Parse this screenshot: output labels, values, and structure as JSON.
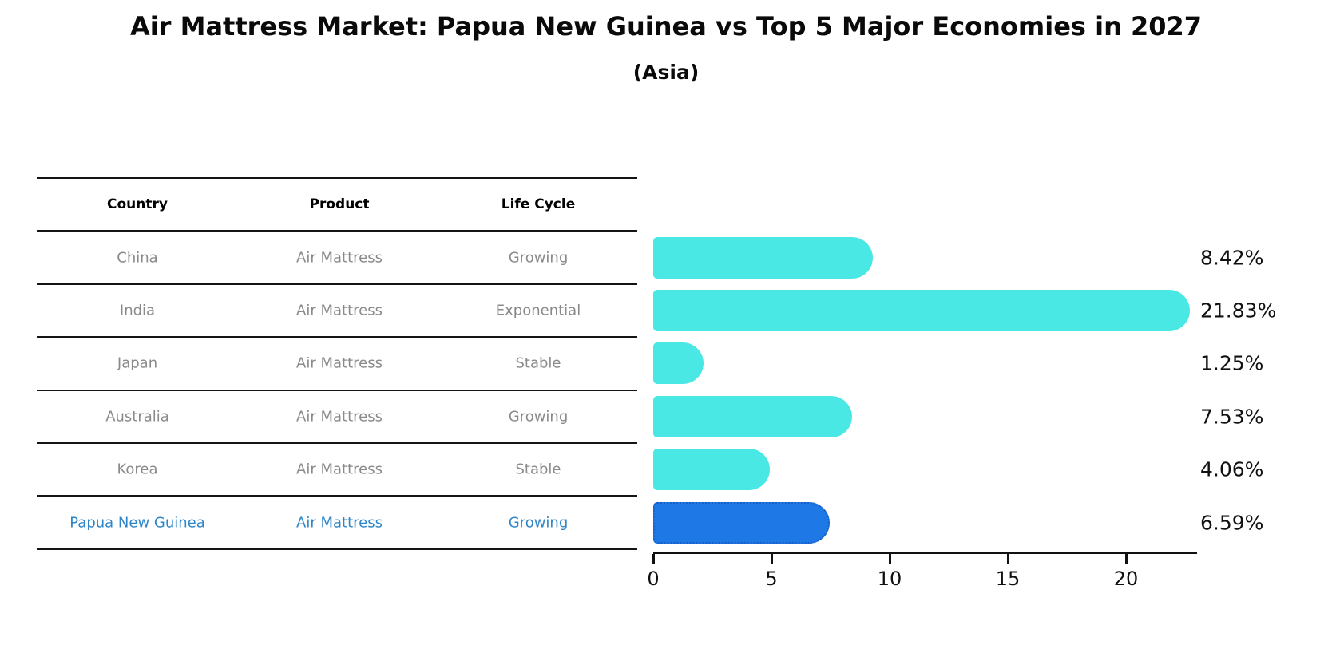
{
  "chart_data": {
    "type": "bar",
    "title": "Air Mattress Market: Papua New Guinea vs Top 5 Major Economies in 2027",
    "subtitle": "(Asia)",
    "orientation": "horizontal",
    "categories": [
      "China",
      "India",
      "Japan",
      "Australia",
      "Korea",
      "Papua New Guinea"
    ],
    "values": [
      8.42,
      21.83,
      1.25,
      7.53,
      4.06,
      6.59
    ],
    "value_labels": [
      "8.42%",
      "21.83%",
      "1.25%",
      "7.53%",
      "4.06%",
      "6.59%"
    ],
    "highlight_index": 5,
    "xtick_labels": [
      "0",
      "5",
      "10",
      "15",
      "20"
    ],
    "xtick_values": [
      0,
      5,
      10,
      15,
      20
    ],
    "xlim": [
      0,
      23
    ],
    "grid": false,
    "legend": "none",
    "bar_color": "#4AE8E4",
    "highlight_bar_color": "#1E78E6",
    "highlight_border_color": "#1A5FC8",
    "label_color": "#111111"
  },
  "table": {
    "headers": [
      "Country",
      "Product",
      "Life Cycle"
    ],
    "rows": [
      {
        "country": "China",
        "product": "Air Mattress",
        "life_cycle": "Growing"
      },
      {
        "country": "India",
        "product": "Air Mattress",
        "life_cycle": "Exponential"
      },
      {
        "country": "Japan",
        "product": "Air Mattress",
        "life_cycle": "Stable"
      },
      {
        "country": "Australia",
        "product": "Air Mattress",
        "life_cycle": "Growing"
      },
      {
        "country": "Korea",
        "product": "Air Mattress",
        "life_cycle": "Stable"
      },
      {
        "country": "Papua New Guinea",
        "product": "Air Mattress",
        "life_cycle": "Growing"
      }
    ],
    "highlight_row": 5,
    "text_color": "#8a8a8a",
    "header_color": "#000000",
    "highlight_text_color": "#2E86C8",
    "rule_color": "#141414"
  }
}
